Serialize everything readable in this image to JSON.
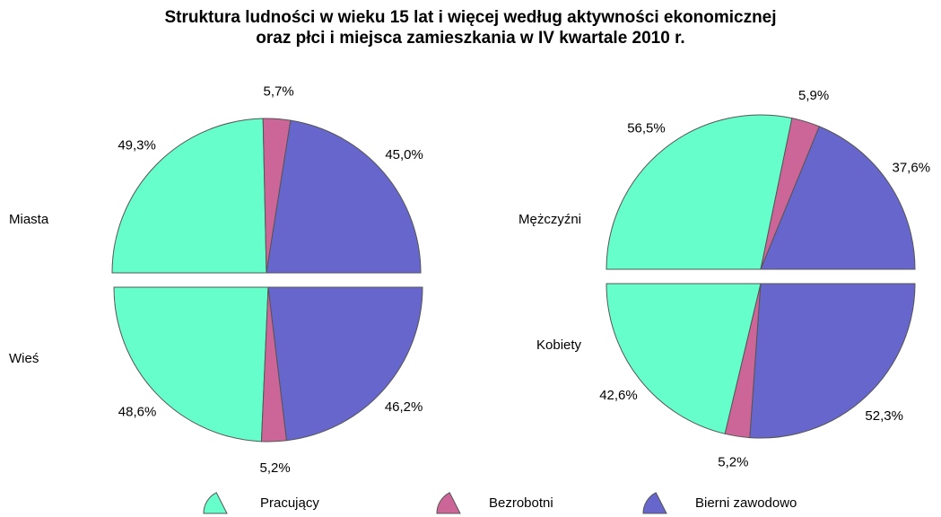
{
  "chart_data": {
    "type": "pie",
    "title": "Struktura ludności w wieku 15 lat i więcej według aktywności ekonomicznej\noraz płci i miejsca zamieszkania w IV kwartale 2010 r.",
    "categories": [
      "Pracujący",
      "Bezrobotni",
      "Bierni zawodowo"
    ],
    "colors": [
      "#66ffcc",
      "#cc6699",
      "#6666cc"
    ],
    "pies": [
      {
        "series": [
          {
            "name": "Miasta",
            "values": [
              49.3,
              5.7,
              45.0
            ],
            "value_labels": [
              "49,3%",
              "5,7%",
              "45,0%"
            ]
          },
          {
            "name": "Wieś",
            "values": [
              48.6,
              5.2,
              46.2
            ],
            "value_labels": [
              "48,6%",
              "5,2%",
              "46,2%"
            ]
          }
        ]
      },
      {
        "series": [
          {
            "name": "Mężczyźni",
            "values": [
              56.5,
              5.9,
              37.6
            ],
            "value_labels": [
              "56,5%",
              "5,9%",
              "37,6%"
            ]
          },
          {
            "name": "Kobiety",
            "values": [
              42.6,
              5.2,
              52.3
            ],
            "value_labels": [
              "42,6%",
              "5,2%",
              "52,3%"
            ]
          }
        ]
      }
    ]
  }
}
